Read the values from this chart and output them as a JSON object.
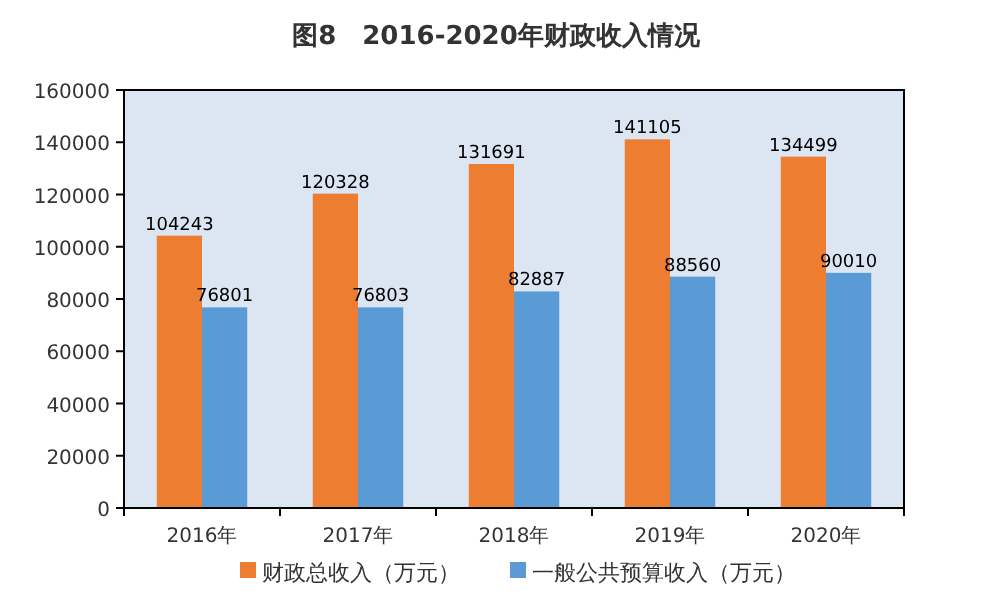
{
  "chart_data": {
    "type": "bar",
    "title": "图8　2016-2020年财政收入情况",
    "categories": [
      "2016年",
      "2017年",
      "2018年",
      "2019年",
      "2020年"
    ],
    "series": [
      {
        "name": "财政总收入（万元）",
        "color": "#ed7d31",
        "values": [
          104243,
          120328,
          131691,
          141105,
          134499
        ]
      },
      {
        "name": "一般公共预算收入（万元）",
        "color": "#5b9bd5",
        "values": [
          76801,
          76803,
          82887,
          88560,
          90010
        ]
      }
    ],
    "ylim": [
      0,
      160000
    ],
    "yticks": [
      0,
      20000,
      40000,
      60000,
      80000,
      100000,
      120000,
      140000,
      160000
    ],
    "data_labels": true,
    "legend": "bottom"
  }
}
